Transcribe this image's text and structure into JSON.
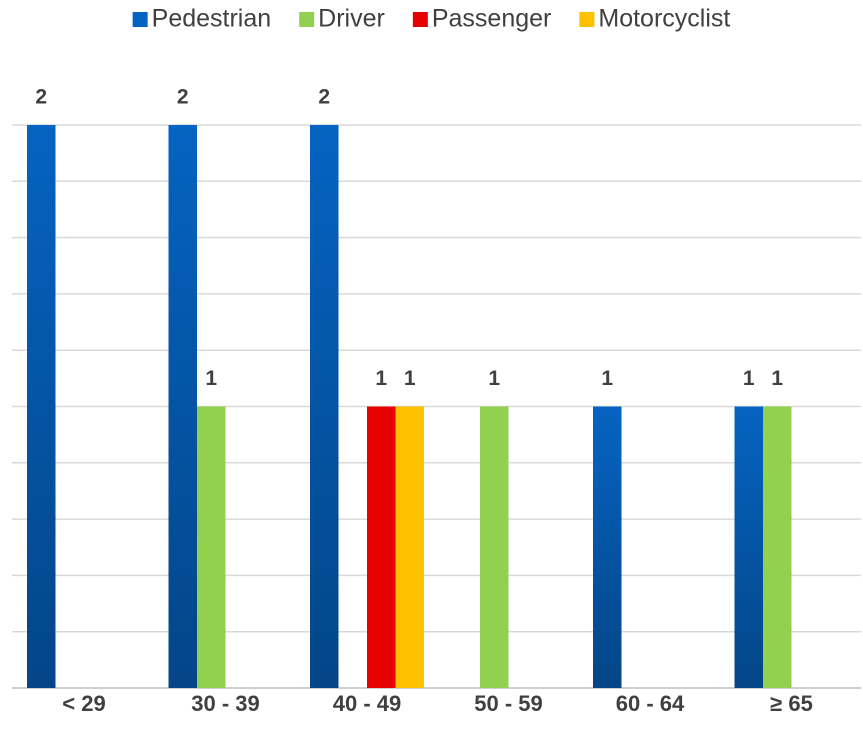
{
  "chart_data": {
    "type": "bar",
    "categories": [
      "< 29",
      "30 - 39",
      "40 - 49",
      "50 - 59",
      "60 - 64",
      "≥ 65"
    ],
    "series": [
      {
        "name": "Pedestrian",
        "color": "#0563c1",
        "values": [
          2,
          2,
          2,
          null,
          1,
          1
        ]
      },
      {
        "name": "Driver",
        "color": "#92d050",
        "values": [
          null,
          1,
          null,
          1,
          null,
          1
        ]
      },
      {
        "name": "Passenger",
        "color": "#e60000",
        "values": [
          null,
          null,
          1,
          null,
          null,
          null
        ]
      },
      {
        "name": "Motorcyclist",
        "color": "#ffc000",
        "values": [
          null,
          null,
          1,
          null,
          null,
          null
        ]
      }
    ],
    "ylim": [
      0,
      2
    ],
    "yticks": [
      0,
      0.2,
      0.4,
      0.6,
      0.8,
      1,
      1.2,
      1.4,
      1.6,
      1.8,
      2
    ],
    "grid": true,
    "legend": "top"
  }
}
